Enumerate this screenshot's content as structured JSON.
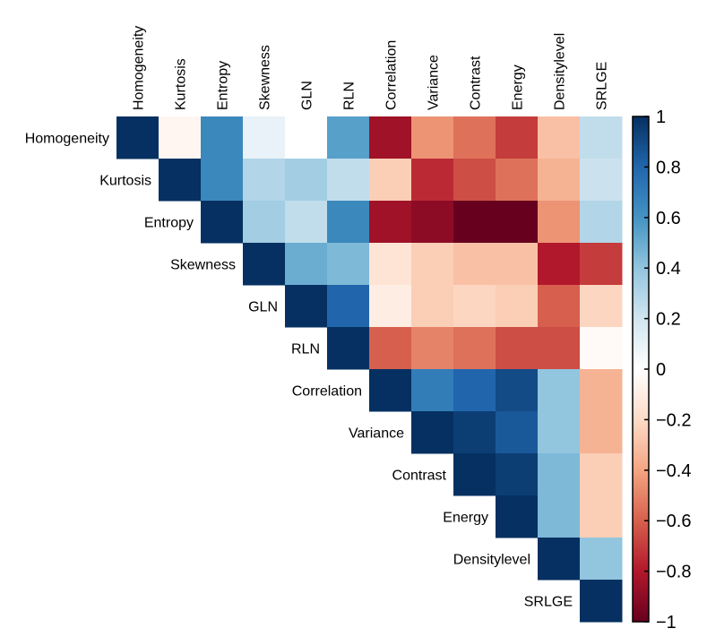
{
  "chart_data": {
    "type": "heatmap",
    "title": "",
    "variables": [
      "Homogeneity",
      "Kurtosis",
      "Entropy",
      "Skewness",
      "GLN",
      "RLN",
      "Correlation",
      "Variance",
      "Contrast",
      "Energy",
      "Densitylevel",
      "SRLGE"
    ],
    "layout": "upper-triangle",
    "matrix_upper_rows": [
      [
        1,
        -0.05,
        0.65,
        0.1,
        0.0,
        0.55,
        -0.85,
        -0.45,
        -0.55,
        -0.7,
        -0.3,
        0.25
      ],
      [
        1,
        0.65,
        0.3,
        0.35,
        0.25,
        -0.25,
        -0.75,
        -0.65,
        -0.55,
        -0.35,
        0.22
      ],
      [
        1,
        0.35,
        0.25,
        0.65,
        -0.85,
        -0.9,
        -1.0,
        -1.0,
        -0.45,
        0.3
      ],
      [
        1,
        0.5,
        0.45,
        -0.15,
        -0.25,
        -0.3,
        -0.3,
        -0.8,
        -0.7
      ],
      [
        1,
        0.8,
        -0.1,
        -0.25,
        -0.22,
        -0.25,
        -0.6,
        -0.22
      ],
      [
        1,
        -0.6,
        -0.5,
        -0.55,
        -0.65,
        -0.65,
        -0.03
      ],
      [
        1,
        0.7,
        0.8,
        0.9,
        0.4,
        -0.35
      ],
      [
        1,
        0.95,
        0.85,
        0.4,
        -0.35
      ],
      [
        1,
        0.95,
        0.45,
        -0.25
      ],
      [
        1,
        0.45,
        -0.25
      ],
      [
        1,
        0.4
      ],
      [
        1
      ]
    ],
    "colorbar": {
      "range": [
        -1,
        1
      ],
      "ticks": [
        1,
        0.8,
        0.6,
        0.4,
        0.2,
        0,
        -0.2,
        -0.4,
        -0.6,
        -0.8,
        -1
      ],
      "tick_labels": [
        "1",
        "0.8",
        "0.6",
        "0.4",
        "0.2",
        "0",
        "−0.2",
        "−0.4",
        "−0.6",
        "−0.8",
        "−1"
      ],
      "colormap": [
        "#67001f",
        "#b2182b",
        "#d6604d",
        "#f4a582",
        "#fddbc7",
        "#ffffff",
        "#d1e5f0",
        "#92c5de",
        "#4393c3",
        "#2166ac",
        "#053061"
      ]
    }
  }
}
